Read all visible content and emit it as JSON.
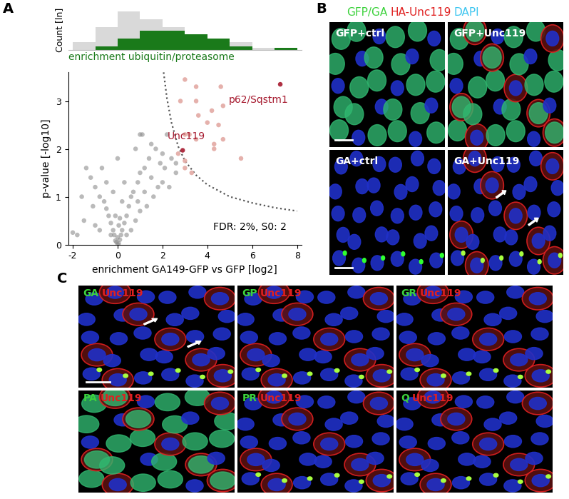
{
  "chart_data": [
    {
      "type": "histogram",
      "ylabel": "Count [ln]",
      "bins": [
        -2,
        -1,
        0,
        1,
        2,
        3,
        4,
        5,
        6,
        7,
        8
      ],
      "series": [
        {
          "color": "#d9d9d9",
          "values": [
            1.0,
            3.0,
            5.0,
            4.0,
            3.0,
            2.0,
            1.5,
            1.0,
            0.3,
            0.3
          ]
        },
        {
          "name": "enrichment ubiquitin/proteasome",
          "color": "#1a7a1a",
          "values": [
            0,
            0.5,
            1.5,
            2.5,
            2.5,
            2.0,
            1.5,
            0.5,
            0,
            0.3
          ]
        }
      ],
      "xlim": [
        -2.2,
        8.2
      ],
      "ylim": [
        0,
        5.2
      ],
      "tick_labels": false
    },
    {
      "type": "scatter",
      "xlabel": "enrichment GA149-GFP vs GFP [log2]",
      "ylabel": "p-value [-log10]",
      "xlim": [
        -2.2,
        8.2
      ],
      "ylim": [
        0,
        3.6
      ],
      "xticks": [
        -2,
        0,
        2,
        4,
        6,
        8
      ],
      "yticks": [
        0,
        1,
        2,
        3
      ],
      "series": [
        {
          "type": "scatter",
          "color": "#8c8c8c",
          "marker": "circle",
          "x": [
            0,
            0.05,
            -0.05,
            0.1,
            -0.1,
            0,
            0.15,
            -0.15,
            0.2,
            -0.2,
            0.05,
            -0.3,
            0.3,
            0.4,
            -0.4,
            0.5,
            -0.5,
            0.6,
            -0.6,
            0.7,
            -0.8,
            0.9,
            -1.0,
            1.0,
            1.2,
            -1.2,
            1.4,
            -1.4,
            1.5,
            1.1,
            0.8,
            -0.7,
            0.3,
            -0.2,
            0.2,
            -1.6,
            -1.8,
            -2.0,
            -1.5,
            -1.0,
            -0.8,
            0.8,
            1.0,
            1.3,
            1.6,
            1.8,
            2.0,
            2.1,
            1.9,
            2.2,
            2.4,
            2.3,
            2.6,
            2.6,
            1.7,
            1.2,
            0.6,
            -0.3,
            0.4,
            1.0,
            0.0,
            -0.5,
            2.0,
            1.5,
            0.9,
            -1.1,
            -0.1,
            0.1
          ],
          "y": [
            0,
            0.02,
            0.05,
            0.1,
            0.08,
            0.15,
            0.2,
            0.2,
            0.3,
            0.3,
            0.4,
            0.45,
            0.45,
            0.6,
            0.6,
            0.8,
            0.75,
            1.0,
            0.9,
            1.1,
            1.0,
            1.3,
            1.2,
            1.5,
            1.6,
            1.4,
            1.8,
            1.6,
            2.1,
            2.3,
            2.0,
            1.6,
            1.3,
            1.1,
            0.9,
            1.0,
            0.2,
            0.25,
            0.5,
            0.4,
            0.3,
            0.5,
            0.7,
            0.8,
            1.0,
            1.2,
            1.3,
            1.6,
            1.7,
            2.3,
            1.8,
            1.2,
            1.5,
            1.7,
            2.0,
            1.1,
            0.3,
            0.2,
            0.2,
            2.3,
            1.8,
            1.3,
            1.9,
            1.4,
            0.9,
            0.8,
            0.6,
            0.55
          ]
        },
        {
          "type": "scatter",
          "color": "#e3a9a3",
          "marker": "circle",
          "x": [
            3.0,
            3.5,
            2.8,
            3.5,
            4.6,
            4.7,
            4.2,
            3.6,
            4.0,
            4.5,
            3.0,
            3.5,
            3.2,
            4.7,
            4.3,
            5.5,
            3.0,
            3.3,
            3.0,
            4.3,
            2.7
          ],
          "y": [
            3.45,
            3.3,
            3.0,
            3.0,
            3.3,
            2.9,
            2.8,
            2.7,
            2.55,
            2.5,
            2.3,
            2.2,
            2.3,
            2.2,
            2.1,
            1.8,
            1.75,
            1.5,
            1.6,
            2.0,
            1.9
          ]
        },
        {
          "type": "scatter",
          "color": "#a6192e",
          "marker": "circle",
          "x": [
            2.9,
            7.25
          ],
          "y": [
            1.97,
            3.35
          ]
        },
        {
          "type": "line",
          "color": "#555555",
          "line_style": "dotted",
          "x": [
            2.05,
            2.2,
            2.4,
            2.7,
            3.0,
            3.5,
            4.0,
            5.0,
            6.0,
            7.0,
            8.0
          ],
          "y": [
            3.6,
            3.05,
            2.55,
            2.05,
            1.75,
            1.45,
            1.25,
            1.0,
            0.87,
            0.77,
            0.7
          ]
        }
      ],
      "annotations": [
        {
          "text": "Unc119",
          "x": 2.9,
          "y": 1.97,
          "color": "#a6192e"
        },
        {
          "text": "p62/Sqstm1",
          "x": 7.25,
          "y": 3.35,
          "color": "#a6192e"
        },
        {
          "text": "FDR: 2%, S0: 2",
          "color": "#000000"
        }
      ]
    }
  ],
  "figure": {
    "panel_labels": [
      "A",
      "B",
      "C"
    ],
    "panel_B": {
      "header": [
        {
          "text": "GFP/GA",
          "color": "#3cd23c"
        },
        {
          "text": "HA-Unc119",
          "color": "#e02020"
        },
        {
          "text": "DAPI",
          "color": "#3ec6f0"
        }
      ],
      "tiles": [
        "GFP+ctrl",
        "GFP+Unc119",
        "GA+ctrl",
        "GA+Unc119"
      ]
    },
    "panel_C": {
      "tiles": [
        [
          {
            "text": "GA",
            "color": "#3cd23c"
          },
          {
            "text": "Unc119",
            "color": "#e02020"
          }
        ],
        [
          {
            "text": "GP",
            "color": "#3cd23c"
          },
          {
            "text": "Unc119",
            "color": "#e02020"
          }
        ],
        [
          {
            "text": "GR",
            "color": "#3cd23c"
          },
          {
            "text": "Unc119",
            "color": "#e02020"
          }
        ],
        [
          {
            "text": "PA",
            "color": "#3cd23c"
          },
          {
            "text": "Unc119",
            "color": "#e02020"
          }
        ],
        [
          {
            "text": "PR",
            "color": "#3cd23c"
          },
          {
            "text": "Unc119",
            "color": "#e02020"
          }
        ],
        [
          {
            "text": "Q",
            "color": "#3cd23c"
          },
          {
            "text": "Unc119",
            "color": "#e02020"
          }
        ]
      ]
    }
  }
}
